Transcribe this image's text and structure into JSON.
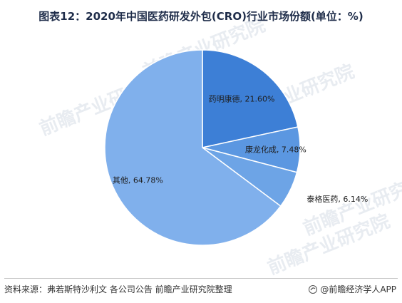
{
  "title": "图表12：2020年中国医药研发外包(CRO)行业市场份额(单位：%)",
  "source": "资料来源：弗若斯特沙利文 各公司公告 前瞻产业研究院整理",
  "app_label": "@前瞻经济学人APP",
  "watermark": "前瞻产业研究院",
  "chart_data": {
    "type": "pie",
    "title": "2020年中国医药研发外包(CRO)行业市场份额(单位：%)",
    "unit": "%",
    "slices": [
      {
        "name": "药明康德",
        "value": 21.6,
        "label": "药明康德, 21.60%",
        "color": "#3d7fd6"
      },
      {
        "name": "康龙化成",
        "value": 7.48,
        "label": "康龙化成, 7.48%",
        "color": "#5b97e1"
      },
      {
        "name": "泰格医药",
        "value": 6.14,
        "label": "泰格医药, 6.14%",
        "color": "#6da4e6"
      },
      {
        "name": "其他",
        "value": 64.78,
        "label": "其他, 64.78%",
        "color": "#80b0ec"
      }
    ]
  }
}
